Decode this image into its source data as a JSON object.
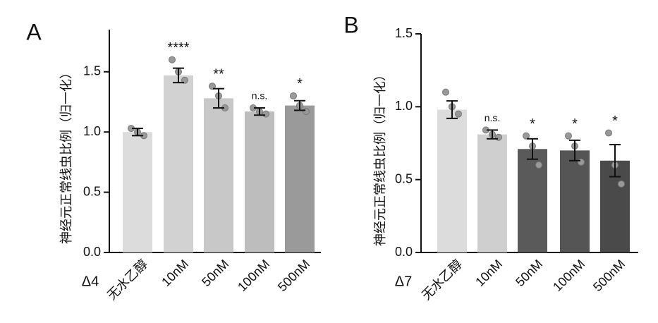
{
  "chart_data": [
    {
      "type": "bar",
      "panel_label": "A",
      "xlabel": "Δ4",
      "ylabel": "神经元正常线虫比例（归一化）",
      "categories": [
        "无水乙醇",
        "10nM",
        "50nM",
        "100nM",
        "500nM"
      ],
      "values": [
        1.0,
        1.47,
        1.28,
        1.17,
        1.22
      ],
      "errors": [
        0.03,
        0.06,
        0.08,
        0.03,
        0.04
      ],
      "points": [
        [
          1.03,
          1.0,
          0.97
        ],
        [
          1.6,
          1.5,
          1.43
        ],
        [
          1.38,
          1.3,
          1.2
        ],
        [
          1.2,
          1.17,
          1.15
        ],
        [
          1.3,
          1.22,
          1.17
        ]
      ],
      "significance": [
        null,
        "****",
        "**",
        "n.s.",
        "*"
      ],
      "colors": [
        "#dcdcdc",
        "#d2d2d2",
        "#c8c8c8",
        "#bdbdbd",
        "#9a9a9a"
      ],
      "ylim": [
        0,
        1.85
      ],
      "yticks": [
        {
          "value": 0,
          "label": "0.0"
        },
        {
          "value": 0.5,
          "label": "0.5"
        },
        {
          "value": 1,
          "label": "1.0"
        },
        {
          "value": 1.5,
          "label": "1.5"
        }
      ]
    },
    {
      "type": "bar",
      "panel_label": "B",
      "xlabel": "Δ7",
      "ylabel": "神经元正常线虫比例（归一化）",
      "categories": [
        "无水乙醇",
        "10nM",
        "50nM",
        "100nM",
        "500nM"
      ],
      "values": [
        0.98,
        0.81,
        0.71,
        0.7,
        0.63
      ],
      "errors": [
        0.06,
        0.03,
        0.07,
        0.07,
        0.11
      ],
      "points": [
        [
          1.1,
          1.0,
          0.95
        ],
        [
          0.84,
          0.81,
          0.79
        ],
        [
          0.8,
          0.73,
          0.6
        ],
        [
          0.8,
          0.73,
          0.62
        ],
        [
          0.82,
          0.6,
          0.47
        ]
      ],
      "significance": [
        null,
        "n.s.",
        "*",
        "*",
        "*"
      ],
      "colors": [
        "#dcdcdc",
        "#cfcfcf",
        "#5a5a5a",
        "#555555",
        "#4a4a4a"
      ],
      "ylim": [
        0,
        1.5
      ],
      "yticks": [
        {
          "value": 0,
          "label": "0.0"
        },
        {
          "value": 0.5,
          "label": "0.5"
        },
        {
          "value": 1,
          "label": "1.0"
        },
        {
          "value": 1.5,
          "label": "1.5"
        }
      ]
    }
  ]
}
